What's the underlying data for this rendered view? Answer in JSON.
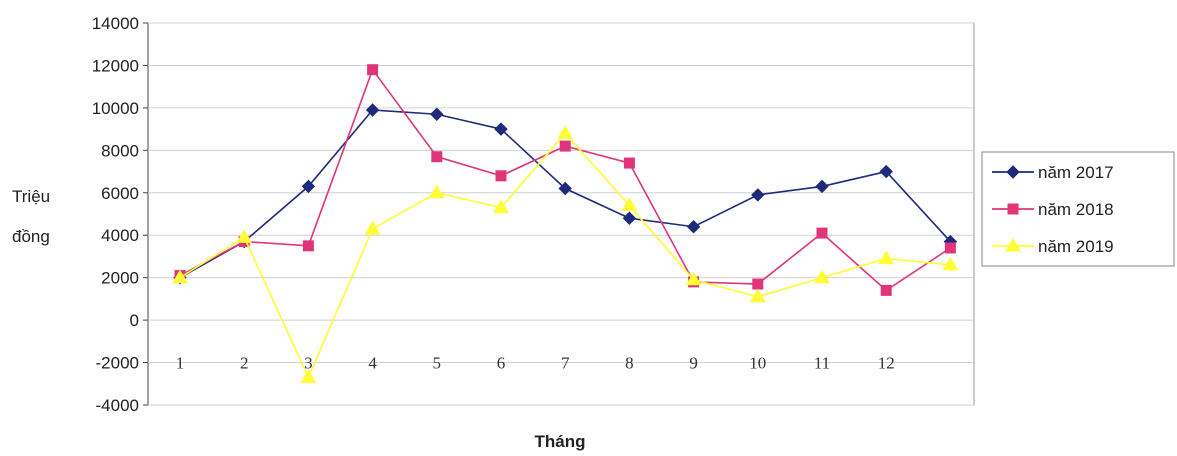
{
  "chart_data": {
    "type": "line",
    "xlabel": "Tháng",
    "ylabel_lines": [
      "Triệu",
      "đồng"
    ],
    "categories": [
      "1",
      "2",
      "3",
      "4",
      "5",
      "6",
      "7",
      "8",
      "9",
      "10",
      "11",
      "12",
      ""
    ],
    "ylim": [
      -4000,
      14000
    ],
    "yticks": [
      14000,
      12000,
      10000,
      8000,
      6000,
      4000,
      2000,
      0,
      -2000,
      -4000
    ],
    "grid": "horizontal",
    "legend_position": "right",
    "series": [
      {
        "name": "năm 2017",
        "color": "#1f2a7a",
        "marker": "diamond",
        "values": [
          2000,
          3700,
          6300,
          9900,
          9700,
          9000,
          6200,
          4800,
          4400,
          5900,
          6300,
          7000,
          3700
        ]
      },
      {
        "name": "năm 2018",
        "color": "#e0357b",
        "marker": "square",
        "values": [
          2100,
          3700,
          3500,
          11800,
          7700,
          6800,
          8200,
          7400,
          1800,
          1700,
          4100,
          1400,
          3400
        ]
      },
      {
        "name": "năm 2019",
        "color": "#ffff33",
        "marker": "triangle",
        "values": [
          2000,
          3900,
          -2700,
          4300,
          6000,
          5300,
          8800,
          5400,
          1900,
          1100,
          2000,
          2900,
          2600
        ]
      }
    ]
  }
}
